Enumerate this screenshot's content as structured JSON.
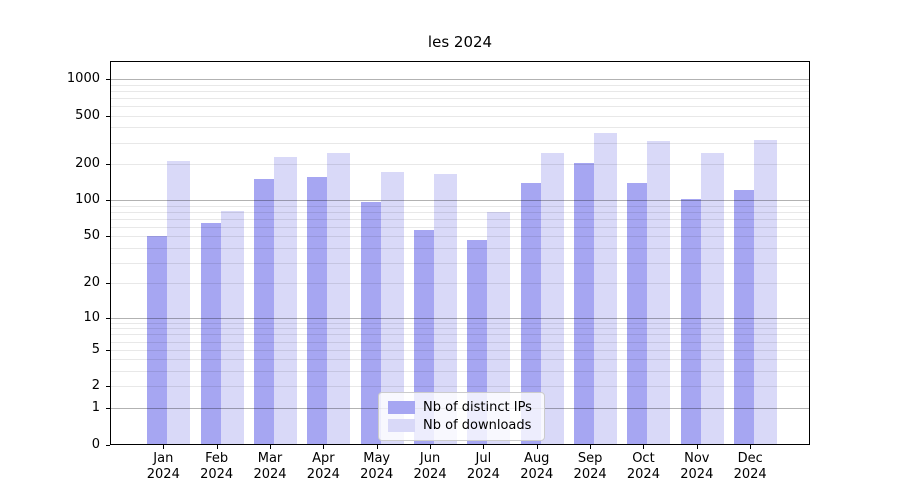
{
  "chart_data": {
    "type": "bar",
    "title": "les 2024",
    "xlabel": "",
    "ylabel": "",
    "categories": [
      {
        "month": "Jan",
        "year": "2024"
      },
      {
        "month": "Feb",
        "year": "2024"
      },
      {
        "month": "Mar",
        "year": "2024"
      },
      {
        "month": "Apr",
        "year": "2024"
      },
      {
        "month": "May",
        "year": "2024"
      },
      {
        "month": "Jun",
        "year": "2024"
      },
      {
        "month": "Jul",
        "year": "2024"
      },
      {
        "month": "Aug",
        "year": "2024"
      },
      {
        "month": "Sep",
        "year": "2024"
      },
      {
        "month": "Oct",
        "year": "2024"
      },
      {
        "month": "Nov",
        "year": "2024"
      },
      {
        "month": "Dec",
        "year": "2024"
      }
    ],
    "series": [
      {
        "name": "Nb of distinct IPs",
        "color": "#a6a6f2",
        "values": [
          50,
          65,
          150,
          157,
          97,
          57,
          47,
          140,
          205,
          140,
          102,
          122
        ]
      },
      {
        "name": "Nb of downloads",
        "color": "#d9d9f8",
        "values": [
          212,
          82,
          228,
          248,
          170,
          166,
          80,
          244,
          358,
          310,
          245,
          315
        ]
      }
    ],
    "y_scale": "log1p",
    "ylim": [
      0,
      1420
    ],
    "y_tick_values": [
      1000,
      500,
      200,
      100,
      50,
      20,
      10,
      5,
      2,
      1,
      0
    ],
    "y_major_gridlines": [
      1,
      10,
      100,
      1000
    ],
    "y_minor_gridlines": [
      2,
      3,
      4,
      5,
      6,
      7,
      8,
      9,
      20,
      30,
      40,
      50,
      60,
      70,
      80,
      90,
      200,
      300,
      400,
      500,
      600,
      700,
      800,
      900
    ],
    "grid": true,
    "legend_position": "bottom-center"
  },
  "colors": {
    "bar_distinct_ips": "#a6a6f2",
    "bar_downloads": "#d9d9f8",
    "grid_major": "rgba(0,0,0,0.30)",
    "grid_minor": "rgba(0,0,0,0.09)",
    "spine": "#000000",
    "legend_border": "#cccccc"
  }
}
